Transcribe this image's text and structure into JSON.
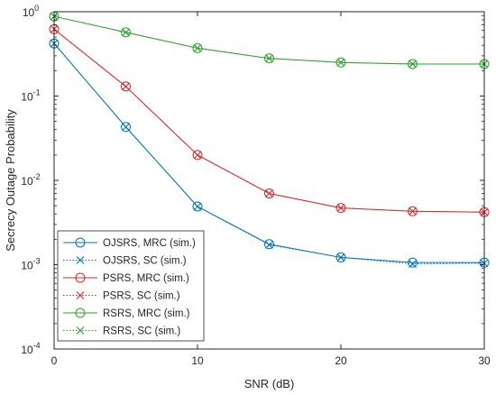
{
  "chart_data": {
    "type": "line",
    "xlabel": "SNR (dB)",
    "ylabel": "Secrecy Outage Probability",
    "xlim": [
      0,
      30
    ],
    "ylim": [
      0.0001,
      1
    ],
    "yscale": "log",
    "grid": false,
    "legend_position": "bottom-left",
    "x_ticks": [
      {
        "value": 0,
        "label": "0"
      },
      {
        "value": 10,
        "label": "10"
      },
      {
        "value": 20,
        "label": "20"
      },
      {
        "value": 30,
        "label": "30"
      }
    ],
    "y_ticks": [
      {
        "value": 0.0001,
        "base": "10",
        "exp": "-4"
      },
      {
        "value": 0.001,
        "base": "10",
        "exp": "-3"
      },
      {
        "value": 0.01,
        "base": "10",
        "exp": "-2"
      },
      {
        "value": 0.1,
        "base": "10",
        "exp": "-1"
      },
      {
        "value": 1,
        "base": "10",
        "exp": "0"
      }
    ],
    "series": [
      {
        "name": "OJSRS, MRC (sim.)",
        "color": "#0072BD",
        "line": "solid",
        "marker": "circle",
        "x": [
          0,
          5,
          10,
          15,
          20,
          25,
          30
        ],
        "y": [
          0.42,
          0.043,
          0.0049,
          0.00175,
          0.00122,
          0.00106,
          0.00106
        ]
      },
      {
        "name": "OJSRS, SC (sim.)",
        "color": "#0072BD",
        "line": "dotted",
        "marker": "x",
        "x": [
          0,
          5,
          10,
          15,
          20,
          25,
          30
        ],
        "y": [
          0.42,
          0.043,
          0.0049,
          0.00172,
          0.00122,
          0.00102,
          0.00104
        ]
      },
      {
        "name": "PSRS, MRC (sim.)",
        "color": "#D62728",
        "line": "solid",
        "marker": "circle",
        "x": [
          0,
          5,
          10,
          15,
          20,
          25,
          30
        ],
        "y": [
          0.62,
          0.13,
          0.02,
          0.007,
          0.0047,
          0.0043,
          0.0042
        ]
      },
      {
        "name": "PSRS, SC (sim.)",
        "color": "#D62728",
        "line": "dotted",
        "marker": "x",
        "x": [
          0,
          5,
          10,
          15,
          20,
          25,
          30
        ],
        "y": [
          0.62,
          0.13,
          0.02,
          0.007,
          0.0047,
          0.0043,
          0.0042
        ]
      },
      {
        "name": "RSRS, MRC (sim.)",
        "color": "#2CA02C",
        "line": "solid",
        "marker": "circle",
        "x": [
          0,
          5,
          10,
          15,
          20,
          25,
          30
        ],
        "y": [
          0.88,
          0.57,
          0.37,
          0.28,
          0.25,
          0.24,
          0.24
        ]
      },
      {
        "name": "RSRS, SC (sim.)",
        "color": "#2CA02C",
        "line": "dotted",
        "marker": "x",
        "x": [
          0,
          5,
          10,
          15,
          20,
          25,
          30
        ],
        "y": [
          0.88,
          0.57,
          0.37,
          0.28,
          0.25,
          0.24,
          0.24
        ]
      }
    ]
  }
}
